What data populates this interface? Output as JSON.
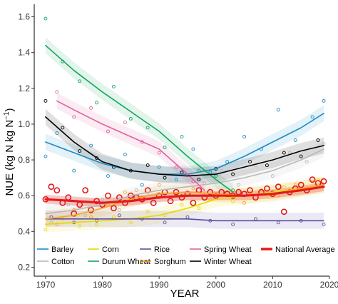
{
  "chart_data": {
    "type": "scatter",
    "xlabel": "YEAR",
    "ylabel_main": "NUE (kg N kg N",
    "ylabel_sup": "−1",
    "ylabel_close": ")",
    "xlim": [
      1968,
      2020
    ],
    "ylim": [
      0.15,
      1.67
    ],
    "x_ticks": [
      1970,
      1980,
      1990,
      2000,
      2010,
      2020
    ],
    "x_tick_labels": [
      "1970",
      "1980",
      "1990",
      "2000",
      "2010",
      "2020"
    ],
    "y_ticks": [
      0.2,
      0.4,
      0.6,
      0.8,
      1.0,
      1.2,
      1.4,
      1.6
    ],
    "y_tick_labels": [
      "0.2",
      "0.4",
      "0.6",
      "0.8",
      "1.0",
      "1.2",
      "1.4",
      "1.6"
    ],
    "grid": false,
    "legend_placement": "bottom-inside",
    "series": [
      {
        "name": "Barley",
        "color": "#1a8cc2",
        "x": [
          1970,
          1975,
          1980,
          1985,
          1990,
          1995,
          2000,
          2005,
          2010,
          2015,
          2019
        ],
        "y": [
          0.9,
          0.84,
          0.78,
          0.74,
          0.72,
          0.72,
          0.75,
          0.82,
          0.9,
          0.98,
          1.06
        ],
        "points_x": [
          1970,
          1972,
          1975,
          1978,
          1981,
          1984,
          1987,
          1990,
          1993,
          1996,
          1999,
          2002,
          2005,
          2008,
          2011,
          2014,
          2017,
          2019
        ],
        "points_y": [
          0.82,
          0.95,
          0.74,
          0.88,
          0.71,
          0.83,
          0.66,
          0.76,
          0.69,
          0.86,
          0.73,
          0.79,
          0.93,
          0.86,
          1.08,
          0.91,
          1.04,
          1.13
        ]
      },
      {
        "name": "Cotton",
        "color": "#b8b8b8",
        "x": [
          1970,
          1975,
          1980,
          1985,
          1990,
          1995,
          2000,
          2005,
          2010,
          2015,
          2019
        ],
        "y": [
          0.5,
          0.52,
          0.55,
          0.6,
          0.63,
          0.65,
          0.67,
          0.7,
          0.74,
          0.8,
          0.86
        ],
        "points_x": [
          1971,
          1974,
          1977,
          1980,
          1983,
          1986,
          1989,
          1992,
          1995,
          1998,
          2001,
          2004,
          2007,
          2010,
          2013,
          2016,
          2019
        ],
        "points_y": [
          0.45,
          0.55,
          0.49,
          0.58,
          0.52,
          0.63,
          0.57,
          0.69,
          0.61,
          0.67,
          0.74,
          0.66,
          0.77,
          0.71,
          0.84,
          0.79,
          0.89
        ]
      },
      {
        "name": "Corn",
        "color": "#e8d800",
        "x": [
          1970,
          1975,
          1980,
          1985,
          1990,
          1995,
          2000,
          2005,
          2010,
          2015,
          2019
        ],
        "y": [
          0.44,
          0.45,
          0.46,
          0.47,
          0.49,
          0.53,
          0.58,
          0.6,
          0.62,
          0.64,
          0.66
        ],
        "points_x": [
          1970,
          1973,
          1976,
          1979,
          1982,
          1985,
          1988,
          1991,
          1994,
          1997,
          2000,
          2003,
          2006,
          2009,
          2012,
          2015,
          2018
        ],
        "points_y": [
          0.41,
          0.47,
          0.43,
          0.44,
          0.48,
          0.45,
          0.51,
          0.49,
          0.55,
          0.53,
          0.59,
          0.57,
          0.61,
          0.6,
          0.65,
          0.63,
          0.69
        ]
      },
      {
        "name": "Durum Wheat",
        "color": "#14a55a",
        "x": [
          1970,
          1975,
          1980,
          1985,
          1990,
          1995,
          2000,
          2003
        ],
        "y": [
          1.44,
          1.3,
          1.18,
          1.07,
          0.96,
          0.82,
          0.69,
          0.62
        ],
        "points_x": [
          1970,
          1973,
          1976,
          1979,
          1982,
          1985,
          1988,
          1991,
          1994,
          1997,
          2000,
          2003
        ],
        "points_y": [
          1.59,
          1.35,
          1.24,
          1.12,
          1.21,
          1.03,
          0.98,
          0.87,
          0.93,
          0.74,
          0.71,
          0.63
        ]
      },
      {
        "name": "Rice",
        "color": "#5b4ea2",
        "x": [
          1970,
          1975,
          1980,
          1985,
          1990,
          1995,
          2000,
          2005,
          2010,
          2015,
          2019
        ],
        "y": [
          0.47,
          0.47,
          0.47,
          0.47,
          0.47,
          0.47,
          0.46,
          0.46,
          0.46,
          0.46,
          0.46
        ],
        "points_x": [
          1971,
          1975,
          1979,
          1983,
          1987,
          1991,
          1995,
          1999,
          2003,
          2007,
          2011,
          2015,
          2019
        ],
        "points_y": [
          0.48,
          0.45,
          0.46,
          0.49,
          0.47,
          0.45,
          0.48,
          0.46,
          0.44,
          0.47,
          0.45,
          0.46,
          0.44
        ]
      },
      {
        "name": "Sorghum",
        "color": "#f5a623",
        "x": [
          1970,
          1975,
          1980,
          1985,
          1990,
          1995,
          2000,
          2005,
          2010,
          2015,
          2019
        ],
        "y": [
          0.47,
          0.49,
          0.53,
          0.58,
          0.61,
          0.62,
          0.61,
          0.6,
          0.61,
          0.64,
          0.66
        ],
        "points_x": [
          1972,
          1975,
          1978,
          1981,
          1984,
          1987,
          1990,
          1993,
          1996,
          1999,
          2002,
          2005,
          2008,
          2011,
          2014,
          2017
        ],
        "points_y": [
          0.44,
          0.52,
          0.48,
          0.55,
          0.62,
          0.57,
          0.66,
          0.6,
          0.64,
          0.58,
          0.62,
          0.56,
          0.63,
          0.6,
          0.66,
          0.68
        ]
      },
      {
        "name": "Spring Wheat",
        "color": "#e0609e",
        "x": [
          1972,
          1975,
          1980,
          1985,
          1990,
          1995,
          1998
        ],
        "y": [
          1.13,
          1.08,
          1.0,
          0.93,
          0.86,
          0.72,
          0.63
        ],
        "points_x": [
          1972,
          1975,
          1978,
          1981,
          1984,
          1987,
          1990,
          1993,
          1996
        ],
        "points_y": [
          1.18,
          1.04,
          1.09,
          0.96,
          1.01,
          0.9,
          0.84,
          0.76,
          0.68
        ]
      },
      {
        "name": "Winter Wheat",
        "color": "#000000",
        "x": [
          1970,
          1975,
          1980,
          1985,
          1990,
          1995,
          2000,
          2005,
          2010,
          2015,
          2019
        ],
        "y": [
          1.04,
          0.9,
          0.79,
          0.74,
          0.72,
          0.71,
          0.72,
          0.76,
          0.8,
          0.85,
          0.88
        ],
        "points_x": [
          1970,
          1973,
          1976,
          1979,
          1982,
          1985,
          1988,
          1991,
          1994,
          1997,
          2000,
          2003,
          2006,
          2009,
          2012,
          2015,
          2018
        ],
        "points_y": [
          1.13,
          0.98,
          0.85,
          0.81,
          0.76,
          0.74,
          0.77,
          0.7,
          0.73,
          0.69,
          0.75,
          0.72,
          0.79,
          0.77,
          0.84,
          0.82,
          0.91
        ]
      },
      {
        "name": "National Average",
        "color": "#e31a1c",
        "x": [
          1970,
          1975,
          1980,
          1985,
          1990,
          1995,
          2000,
          2005,
          2010,
          2015,
          2019
        ],
        "y": [
          0.58,
          0.57,
          0.56,
          0.57,
          0.59,
          0.6,
          0.6,
          0.6,
          0.61,
          0.63,
          0.65
        ],
        "points_x": [
          1970,
          1971,
          1972,
          1973,
          1974,
          1975,
          1976,
          1977,
          1978,
          1979,
          1980,
          1981,
          1982,
          1983,
          1984,
          1985,
          1986,
          1987,
          1988,
          1989,
          1990,
          1991,
          1992,
          1993,
          1994,
          1995,
          1996,
          1997,
          1998,
          1999,
          2000,
          2001,
          2002,
          2003,
          2004,
          2005,
          2006,
          2007,
          2008,
          2009,
          2010,
          2011,
          2012,
          2013,
          2014,
          2015,
          2016,
          2017,
          2018,
          2019
        ],
        "points_y": [
          0.58,
          0.65,
          0.63,
          0.56,
          0.59,
          0.5,
          0.55,
          0.63,
          0.52,
          0.57,
          0.55,
          0.6,
          0.53,
          0.59,
          0.56,
          0.6,
          0.59,
          0.58,
          0.63,
          0.56,
          0.6,
          0.62,
          0.57,
          0.62,
          0.59,
          0.61,
          0.56,
          0.63,
          0.59,
          0.62,
          0.6,
          0.62,
          0.61,
          0.6,
          0.62,
          0.61,
          0.63,
          0.59,
          0.62,
          0.64,
          0.61,
          0.65,
          0.51,
          0.62,
          0.64,
          0.66,
          0.63,
          0.69,
          0.67,
          0.68
        ]
      }
    ]
  }
}
